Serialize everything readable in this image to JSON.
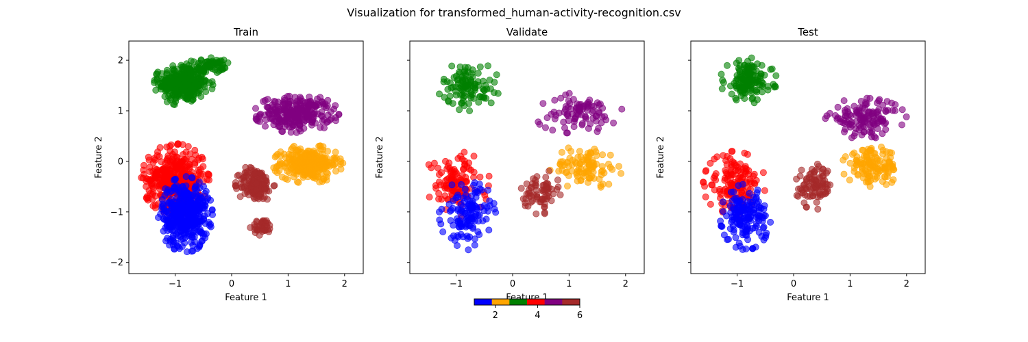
{
  "suptitle": "Visualization for transformed_human-activity-recognition.csv",
  "colors": {
    "1": "#0000ff",
    "2": "#ffa500",
    "3": "#008000",
    "4": "#ff0000",
    "5": "#800080",
    "6": "#a52a2a"
  },
  "chart_data": [
    {
      "type": "scatter",
      "title": "Train",
      "xlabel": "Feature 1",
      "ylabel": "Feature 2",
      "xlim": [
        -1.82,
        2.33
      ],
      "ylim": [
        -2.22,
        2.38
      ],
      "xticks": [
        -1,
        0,
        1,
        2
      ],
      "yticks": [
        -2,
        -1,
        0,
        1,
        2
      ],
      "xtick_labels": [
        "−1",
        "0",
        "1",
        "2"
      ],
      "ytick_labels": [
        "−2",
        "−1",
        "0",
        "1",
        "2"
      ],
      "grid": false,
      "alpha": 0.6,
      "clusters": [
        {
          "label": 3,
          "cx": -0.85,
          "cy": 1.55,
          "rx": 0.52,
          "ry": 0.45,
          "n": 330
        },
        {
          "label": 3,
          "cx": -0.35,
          "cy": 1.9,
          "rx": 0.3,
          "ry": 0.15,
          "n": 60
        },
        {
          "label": 5,
          "cx": 1.15,
          "cy": 0.95,
          "rx": 0.75,
          "ry": 0.38,
          "n": 260
        },
        {
          "label": 2,
          "cx": 1.35,
          "cy": -0.05,
          "rx": 0.62,
          "ry": 0.38,
          "n": 280
        },
        {
          "label": 6,
          "cx": 0.42,
          "cy": -0.45,
          "rx": 0.35,
          "ry": 0.38,
          "n": 150
        },
        {
          "label": 6,
          "cx": 0.55,
          "cy": -1.3,
          "rx": 0.22,
          "ry": 0.18,
          "n": 40
        },
        {
          "label": 4,
          "cx": -1.0,
          "cy": -0.35,
          "rx": 0.6,
          "ry": 0.7,
          "n": 420
        },
        {
          "label": 1,
          "cx": -0.82,
          "cy": -1.05,
          "rx": 0.48,
          "ry": 0.75,
          "n": 420
        }
      ]
    },
    {
      "type": "scatter",
      "title": "Validate",
      "xlabel": "Feature 1",
      "ylabel": "Feature 2",
      "xlim": [
        -1.82,
        2.33
      ],
      "ylim": [
        -2.22,
        2.38
      ],
      "xticks": [
        -1,
        0,
        1,
        2
      ],
      "yticks": [
        -2,
        -1,
        0,
        1,
        2
      ],
      "xtick_labels": [
        "−1",
        "0",
        "1",
        "2"
      ],
      "ytick_labels": [],
      "grid": false,
      "alpha": 0.6,
      "clusters": [
        {
          "label": 3,
          "cx": -0.78,
          "cy": 1.5,
          "rx": 0.55,
          "ry": 0.5,
          "n": 110
        },
        {
          "label": 5,
          "cx": 1.15,
          "cy": 0.95,
          "rx": 0.8,
          "ry": 0.4,
          "n": 90
        },
        {
          "label": 2,
          "cx": 1.3,
          "cy": -0.1,
          "rx": 0.65,
          "ry": 0.45,
          "n": 100
        },
        {
          "label": 6,
          "cx": 0.5,
          "cy": -0.6,
          "rx": 0.35,
          "ry": 0.45,
          "n": 70
        },
        {
          "label": 4,
          "cx": -1.0,
          "cy": -0.45,
          "rx": 0.6,
          "ry": 0.65,
          "n": 120
        },
        {
          "label": 1,
          "cx": -0.8,
          "cy": -1.05,
          "rx": 0.5,
          "ry": 0.7,
          "n": 130
        }
      ]
    },
    {
      "type": "scatter",
      "title": "Test",
      "xlabel": "Feature 1",
      "ylabel": "Feature 2",
      "xlim": [
        -1.82,
        2.33
      ],
      "ylim": [
        -2.22,
        2.38
      ],
      "xticks": [
        -1,
        0,
        1,
        2
      ],
      "yticks": [
        -2,
        -1,
        0,
        1,
        2
      ],
      "xtick_labels": [
        "−1",
        "0",
        "1",
        "2"
      ],
      "ytick_labels": [],
      "grid": false,
      "alpha": 0.6,
      "clusters": [
        {
          "label": 3,
          "cx": -0.8,
          "cy": 1.6,
          "rx": 0.5,
          "ry": 0.45,
          "n": 140
        },
        {
          "label": 5,
          "cx": 1.25,
          "cy": 0.85,
          "rx": 0.75,
          "ry": 0.4,
          "n": 130
        },
        {
          "label": 2,
          "cx": 1.4,
          "cy": -0.1,
          "rx": 0.55,
          "ry": 0.4,
          "n": 130
        },
        {
          "label": 6,
          "cx": 0.38,
          "cy": -0.5,
          "rx": 0.35,
          "ry": 0.45,
          "n": 90
        },
        {
          "label": 4,
          "cx": -1.05,
          "cy": -0.45,
          "rx": 0.55,
          "ry": 0.65,
          "n": 150
        },
        {
          "label": 1,
          "cx": -0.85,
          "cy": -1.1,
          "rx": 0.45,
          "ry": 0.65,
          "n": 160
        }
      ]
    }
  ],
  "colorbar": {
    "range": [
      1,
      6
    ],
    "ticks": [
      2,
      4,
      6
    ],
    "tick_labels": [
      "2",
      "4",
      "6"
    ]
  }
}
